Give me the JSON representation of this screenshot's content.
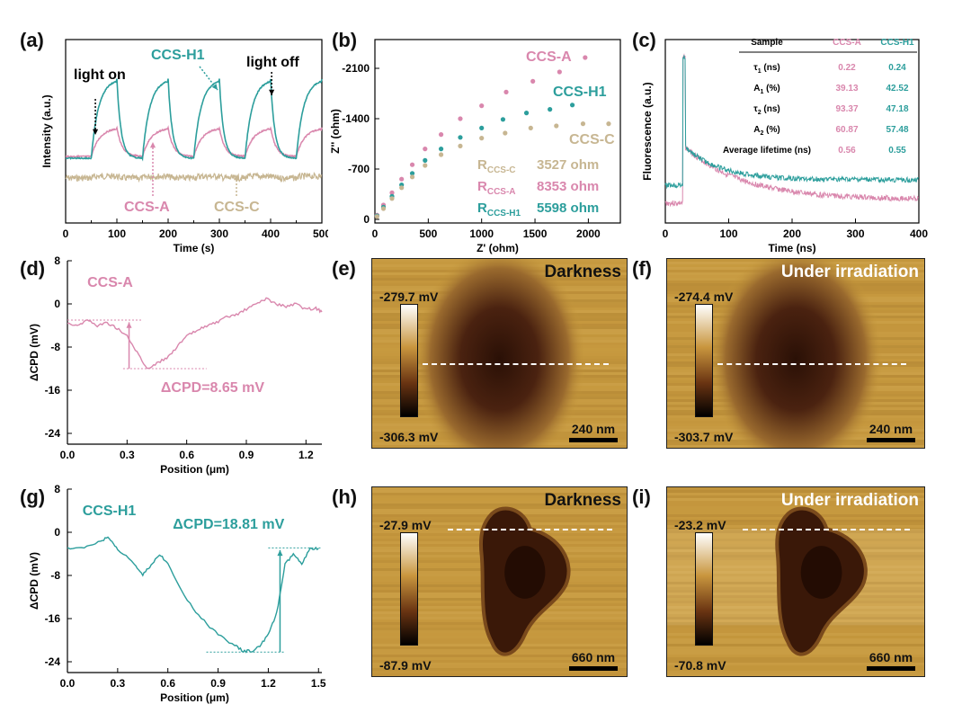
{
  "panel_labels": {
    "a": "(a)",
    "b": "(b)",
    "c": "(c)",
    "d": "(d)",
    "e": "(e)",
    "f": "(f)",
    "g": "(g)",
    "h": "(h)",
    "i": "(i)"
  },
  "colors": {
    "ccs_a": "#d987ad",
    "ccs_c": "#c7b692",
    "ccs_h1": "#2c9e9c",
    "afm_light": "#c79a3c",
    "afm_dark": "#2a1006"
  },
  "chart_data": [
    {
      "id": "a",
      "type": "line",
      "xlabel": "Time (s)",
      "ylabel": "Intensity (a.u.)",
      "xlim": [
        0,
        500
      ],
      "xticks": [
        "0",
        "50",
        "100",
        "150",
        "200",
        "250",
        "300",
        "350",
        "400",
        "450",
        "500"
      ],
      "series": [
        {
          "name": "CCS-H1",
          "color": "#2c9e9c"
        },
        {
          "name": "CCS-A",
          "color": "#d987ad"
        },
        {
          "name": "CCS-C",
          "color": "#c7b692"
        }
      ],
      "annotations": [
        "light on",
        "light off",
        "CCS-H1",
        "CCS-A",
        "CCS-C"
      ]
    },
    {
      "id": "b",
      "type": "scatter",
      "xlabel": "Z' (ohm)",
      "ylabel": "Z'' (ohm)",
      "xlim": [
        0,
        2300
      ],
      "ylim": [
        0,
        -2500
      ],
      "xticks": [
        "0",
        "500",
        "1000",
        "1500",
        "2000"
      ],
      "yticks": [
        "0",
        "-700",
        "-1400",
        "-2100"
      ],
      "series": [
        {
          "name": "CCS-A",
          "color": "#d987ad",
          "x": [
            20,
            80,
            160,
            250,
            350,
            470,
            620,
            800,
            1000,
            1230,
            1480,
            1730,
            1970
          ],
          "y": [
            -60,
            -200,
            -370,
            -560,
            -760,
            -980,
            -1180,
            -1400,
            -1580,
            -1770,
            -1920,
            -2050,
            -2250
          ]
        },
        {
          "name": "CCS-H1",
          "color": "#2c9e9c",
          "x": [
            20,
            80,
            160,
            250,
            350,
            470,
            620,
            800,
            1000,
            1200,
            1420,
            1640,
            1850
          ],
          "y": [
            -50,
            -170,
            -320,
            -480,
            -640,
            -820,
            -980,
            -1140,
            -1270,
            -1390,
            -1480,
            -1530,
            -1590
          ]
        },
        {
          "name": "CCS-C",
          "color": "#c7b692",
          "x": [
            20,
            80,
            160,
            250,
            350,
            470,
            620,
            800,
            1000,
            1220,
            1460,
            1700,
            1950,
            2190
          ],
          "y": [
            -40,
            -150,
            -290,
            -440,
            -590,
            -750,
            -900,
            -1020,
            -1130,
            -1200,
            -1270,
            -1300,
            -1330,
            -1330
          ]
        }
      ],
      "legend": [
        {
          "name": "R",
          "sub": "CCS-C",
          "value": "3527 ohm",
          "color": "#c7b692"
        },
        {
          "name": "R",
          "sub": "CCS-A",
          "value": "8353 ohm",
          "color": "#d987ad"
        },
        {
          "name": "R",
          "sub": "CCS-H1",
          "value": "5598 ohm",
          "color": "#2c9e9c"
        }
      ],
      "annotations": [
        "CCS-A",
        "CCS-H1",
        "CCS-C"
      ]
    },
    {
      "id": "c",
      "type": "line",
      "xlabel": "Time (ns)",
      "ylabel": "Fluorescence (a.u.)",
      "xlim": [
        0,
        400
      ],
      "xticks": [
        "0",
        "100",
        "200",
        "300",
        "400"
      ],
      "series": [
        {
          "name": "CCS-A",
          "color": "#d987ad"
        },
        {
          "name": "CCS-H1",
          "color": "#2c9e9c"
        }
      ],
      "table": {
        "headers": [
          "Sample",
          "CCS-A",
          "CCS-H1"
        ],
        "rows": [
          {
            "sym": "τ",
            "sub": "1",
            "unit": " (ns)",
            "a": "0.22",
            "h1": "0.24"
          },
          {
            "sym": "A",
            "sub": "1",
            "unit": " (%)",
            "a": "39.13",
            "h1": "42.52"
          },
          {
            "sym": "τ",
            "sub": "2",
            "unit": " (ns)",
            "a": "93.37",
            "h1": "47.18"
          },
          {
            "sym": "A",
            "sub": "2",
            "unit": " (%)",
            "a": "60.87",
            "h1": "57.48"
          },
          {
            "sym": "Average lifetime (ns)",
            "sub": "",
            "unit": "",
            "a": "0.56",
            "h1": "0.55"
          }
        ]
      }
    },
    {
      "id": "d",
      "type": "line",
      "xlabel": "Position (μm)",
      "ylabel": "ΔCPD (mV)",
      "xlim": [
        0,
        1.28
      ],
      "ylim": [
        -26,
        8
      ],
      "xticks": [
        "0.0",
        "0.3",
        "0.6",
        "0.9",
        "1.2"
      ],
      "yticks": [
        "8",
        "0",
        "-8",
        "-16",
        "-24"
      ],
      "series": [
        {
          "name": "CCS-A",
          "color": "#d987ad",
          "x": [
            0,
            0.05,
            0.1,
            0.15,
            0.2,
            0.25,
            0.3,
            0.35,
            0.4,
            0.45,
            0.5,
            0.55,
            0.6,
            0.65,
            0.7,
            0.75,
            0.8,
            0.85,
            0.9,
            0.95,
            1.0,
            1.05,
            1.1,
            1.15,
            1.2,
            1.25,
            1.28
          ],
          "y": [
            -3.5,
            -4,
            -3,
            -4,
            -3.5,
            -4.5,
            -6,
            -9,
            -12,
            -11,
            -10,
            -8,
            -6,
            -5,
            -4,
            -3.5,
            -2.5,
            -2,
            -1,
            0,
            1,
            0,
            -0.5,
            0,
            -1,
            -0.8,
            -1.5
          ]
        }
      ],
      "annotations": [
        "CCS-A",
        "ΔCPD=8.65 mV"
      ]
    },
    {
      "id": "g",
      "type": "line",
      "xlabel": "Position (μm)",
      "ylabel": "ΔCPD (mV)",
      "xlim": [
        0,
        1.52
      ],
      "ylim": [
        -26,
        8
      ],
      "xticks": [
        "0.0",
        "0.3",
        "0.6",
        "0.9",
        "1.2",
        "1.5"
      ],
      "yticks": [
        "8",
        "0",
        "-8",
        "-16",
        "-24"
      ],
      "series": [
        {
          "name": "CCS-H1",
          "color": "#2c9e9c",
          "x": [
            0,
            0.1,
            0.2,
            0.25,
            0.3,
            0.4,
            0.45,
            0.5,
            0.55,
            0.6,
            0.7,
            0.8,
            0.9,
            1.0,
            1.05,
            1.1,
            1.15,
            1.2,
            1.25,
            1.3,
            1.35,
            1.4,
            1.45,
            1.5
          ],
          "y": [
            -3,
            -3,
            -1.5,
            -1,
            -3,
            -6,
            -8,
            -6,
            -4,
            -6,
            -12,
            -16,
            -19,
            -21,
            -22,
            -22,
            -21,
            -19,
            -15,
            -6,
            -4,
            -6,
            -3,
            -3
          ]
        }
      ],
      "annotations": [
        "CCS-H1",
        "ΔCPD=18.81 mV"
      ]
    }
  ],
  "afm": [
    {
      "id": "e",
      "title": "Darkness",
      "top": "-279.7 mV",
      "bottom": "-306.3 mV",
      "scale": "240 nm"
    },
    {
      "id": "f",
      "title": "Under irradiation",
      "top": "-274.4 mV",
      "bottom": "-303.7 mV",
      "scale": "240 nm"
    },
    {
      "id": "h",
      "title": "Darkness",
      "top": "-27.9 mV",
      "bottom": "-87.9 mV",
      "scale": "660 nm"
    },
    {
      "id": "i",
      "title": "Under irradiation",
      "top": "-23.2 mV",
      "bottom": "-70.8 mV",
      "scale": "660 nm"
    }
  ]
}
